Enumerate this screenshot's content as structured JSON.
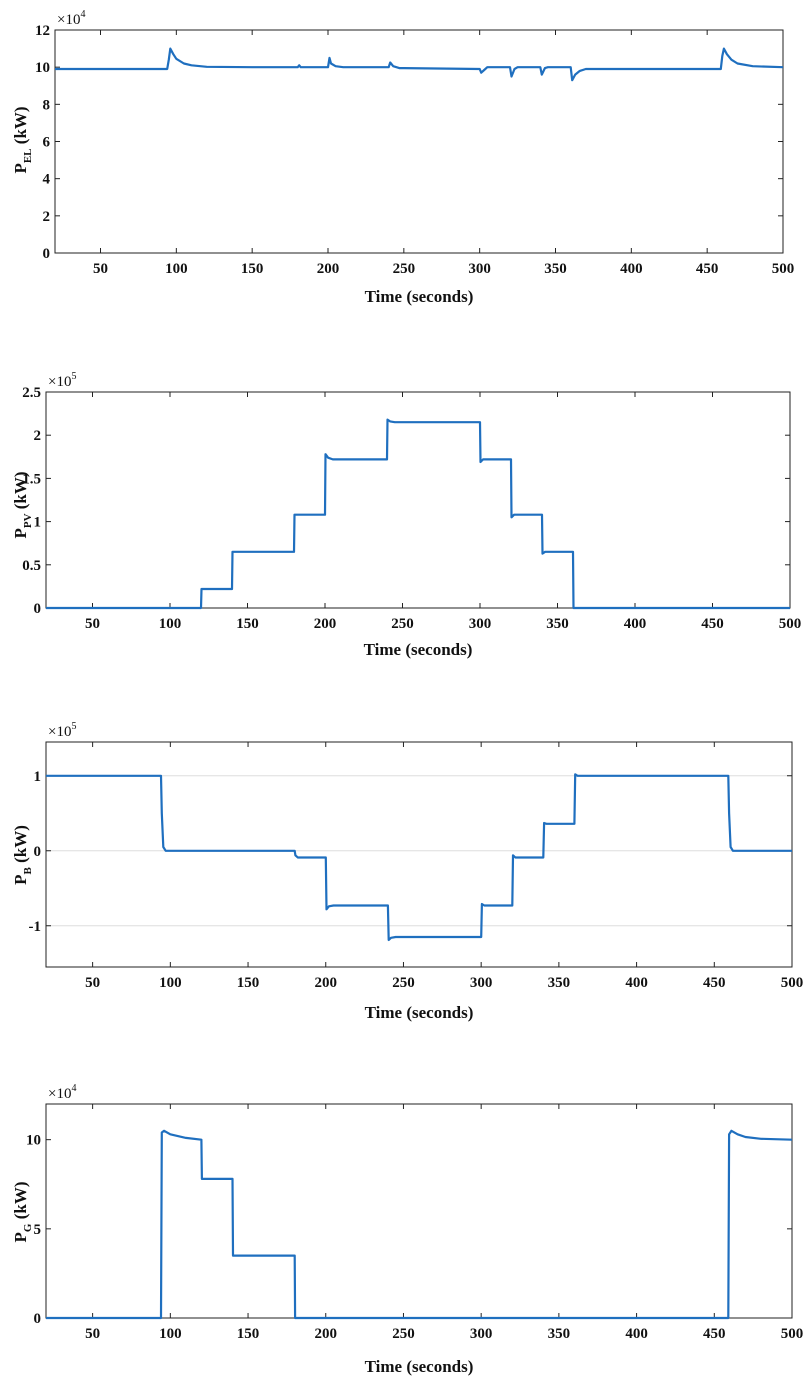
{
  "figure": {
    "line_color": "#1f6fbf",
    "axis_color": "#222222",
    "grid_color": "#dddddd"
  },
  "chart_data": [
    {
      "type": "line",
      "name": "pel",
      "ylabel_main": "P",
      "ylabel_sub": "EL",
      "ylabel_unit": " (kW)",
      "xlabel": "Time (seconds)",
      "multiplier": "×10",
      "multiplier_exp": "4",
      "xlim": [
        20,
        500
      ],
      "ylim": [
        0,
        12
      ],
      "xticks": [
        50,
        100,
        150,
        200,
        250,
        300,
        350,
        400,
        450,
        500
      ],
      "yticks": [
        0,
        2,
        4,
        6,
        8,
        10,
        12
      ],
      "ytick_labels": [
        "0",
        "2",
        "4",
        "6",
        "8",
        "10",
        "12"
      ],
      "grid": false,
      "series": [
        {
          "name": "P_EL",
          "x": [
            20,
            94,
            95,
            96,
            98,
            100,
            105,
            110,
            120,
            150,
            180,
            181,
            182,
            200,
            201,
            202,
            205,
            210,
            240,
            241,
            243,
            247,
            250,
            300,
            301,
            303,
            305,
            320,
            321,
            323,
            325,
            340,
            341,
            343,
            345,
            360,
            361,
            363,
            366,
            370,
            380,
            459,
            460,
            461,
            463,
            466,
            470,
            480,
            500
          ],
          "y": [
            9.9,
            9.9,
            10.4,
            11.0,
            10.7,
            10.45,
            10.2,
            10.1,
            10.02,
            10.0,
            10.0,
            10.1,
            10.0,
            10.0,
            10.5,
            10.2,
            10.05,
            10.0,
            10.0,
            10.25,
            10.05,
            9.95,
            9.95,
            9.9,
            9.7,
            9.85,
            10.0,
            10.0,
            9.5,
            9.9,
            10.0,
            10.0,
            9.6,
            9.95,
            10.0,
            10.0,
            9.3,
            9.6,
            9.8,
            9.9,
            9.9,
            9.9,
            10.6,
            11.0,
            10.7,
            10.4,
            10.2,
            10.05,
            10.0
          ]
        }
      ]
    },
    {
      "type": "line",
      "name": "ppv",
      "ylabel_main": "P",
      "ylabel_sub": "PV",
      "ylabel_unit": " (kW)",
      "xlabel": "Time (seconds)",
      "multiplier": "×10",
      "multiplier_exp": "5",
      "xlim": [
        20,
        500
      ],
      "ylim": [
        0,
        2.5
      ],
      "xticks": [
        50,
        100,
        150,
        200,
        250,
        300,
        350,
        400,
        450,
        500
      ],
      "yticks": [
        0,
        0.5,
        1,
        1.5,
        2,
        2.5
      ],
      "ytick_labels": [
        "0",
        "0.5",
        "1",
        "1.5",
        "2",
        "2.5"
      ],
      "grid": false,
      "series": [
        {
          "name": "P_PV",
          "x": [
            20,
            120,
            120.3,
            140,
            140.3,
            180,
            180.3,
            200,
            200.3,
            202,
            205,
            240,
            240.3,
            242,
            245,
            300,
            300.3,
            302,
            305,
            320,
            320.3,
            322,
            325,
            340,
            340.3,
            342,
            345,
            360,
            360.3,
            500
          ],
          "y": [
            0,
            0,
            0.22,
            0.22,
            0.65,
            0.65,
            1.08,
            1.08,
            1.78,
            1.74,
            1.72,
            1.72,
            2.18,
            2.16,
            2.15,
            2.15,
            1.69,
            1.72,
            1.72,
            1.72,
            1.05,
            1.08,
            1.08,
            1.08,
            0.63,
            0.65,
            0.65,
            0.65,
            0,
            0
          ]
        }
      ]
    },
    {
      "type": "line",
      "name": "pb",
      "ylabel_main": "P",
      "ylabel_sub": "B",
      "ylabel_unit": " (kW)",
      "xlabel": "Time (seconds)",
      "multiplier": "×10",
      "multiplier_exp": "5",
      "xlim": [
        20,
        500
      ],
      "ylim": [
        -1.55,
        1.45
      ],
      "xticks": [
        50,
        100,
        150,
        200,
        250,
        300,
        350,
        400,
        450,
        500
      ],
      "yticks": [
        -1,
        0,
        1
      ],
      "ytick_labels": [
        "-1",
        "0",
        "1"
      ],
      "grid": true,
      "series": [
        {
          "name": "P_B",
          "x": [
            20,
            94,
            94.5,
            95.5,
            97,
            180,
            180.5,
            182,
            200,
            200.5,
            202,
            205,
            240,
            240.5,
            242,
            245,
            300,
            300.5,
            302,
            305,
            320,
            320.5,
            322,
            325,
            340,
            340.5,
            342,
            345,
            360,
            360.5,
            362,
            365,
            459,
            459.5,
            460.5,
            462,
            500
          ],
          "y": [
            1.0,
            1.0,
            0.5,
            0.05,
            0.0,
            0.0,
            -0.06,
            -0.09,
            -0.09,
            -0.78,
            -0.74,
            -0.73,
            -0.73,
            -1.19,
            -1.16,
            -1.15,
            -1.15,
            -0.71,
            -0.73,
            -0.73,
            -0.73,
            -0.06,
            -0.09,
            -0.09,
            -0.09,
            0.37,
            0.36,
            0.36,
            0.36,
            1.02,
            1.0,
            1.0,
            1.0,
            0.5,
            0.05,
            0.0,
            0.0
          ]
        }
      ]
    },
    {
      "type": "line",
      "name": "pg",
      "ylabel_main": "P",
      "ylabel_sub": "G",
      "ylabel_unit": " (kW)",
      "xlabel": "Time (seconds)",
      "multiplier": "×10",
      "multiplier_exp": "4",
      "xlim": [
        20,
        500
      ],
      "ylim": [
        0,
        12
      ],
      "xticks": [
        50,
        100,
        150,
        200,
        250,
        300,
        350,
        400,
        450,
        500
      ],
      "yticks": [
        0,
        5,
        10
      ],
      "ytick_labels": [
        "0",
        "5",
        "10"
      ],
      "grid": false,
      "series": [
        {
          "name": "P_G",
          "x": [
            20,
            94,
            94.5,
            96,
            100,
            110,
            120,
            120.3,
            140,
            140.3,
            180,
            180.3,
            459,
            459.5,
            461,
            465,
            470,
            480,
            500
          ],
          "y": [
            0,
            0,
            10.4,
            10.5,
            10.3,
            10.1,
            10.0,
            7.8,
            7.8,
            3.5,
            3.5,
            0,
            0,
            10.3,
            10.5,
            10.3,
            10.15,
            10.05,
            10.0
          ]
        }
      ]
    }
  ]
}
